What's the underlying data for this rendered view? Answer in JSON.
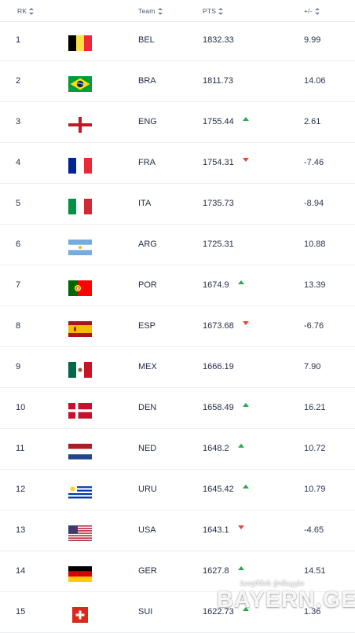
{
  "header": {
    "rk_label": "RK",
    "team_label": "Team",
    "pts_label": "PTS",
    "diff_label": "+/-"
  },
  "rows": [
    {
      "rank": "1",
      "flag": "belgium-flag-icon",
      "team": "BEL",
      "pts": "1832.33",
      "trend": "none",
      "diff": "9.99"
    },
    {
      "rank": "2",
      "flag": "brazil-flag-icon",
      "team": "BRA",
      "pts": "1811.73",
      "trend": "none",
      "diff": "14.06"
    },
    {
      "rank": "3",
      "flag": "england-flag-icon",
      "team": "ENG",
      "pts": "1755.44",
      "trend": "up",
      "diff": "2.61"
    },
    {
      "rank": "4",
      "flag": "france-flag-icon",
      "team": "FRA",
      "pts": "1754.31",
      "trend": "down",
      "diff": "-7.46"
    },
    {
      "rank": "5",
      "flag": "italy-flag-icon",
      "team": "ITA",
      "pts": "1735.73",
      "trend": "none",
      "diff": "-8.94"
    },
    {
      "rank": "6",
      "flag": "argentina-flag-icon",
      "team": "ARG",
      "pts": "1725.31",
      "trend": "none",
      "diff": "10.88"
    },
    {
      "rank": "7",
      "flag": "portugal-flag-icon",
      "team": "POR",
      "pts": "1674.9",
      "trend": "up",
      "diff": "13.39"
    },
    {
      "rank": "8",
      "flag": "spain-flag-icon",
      "team": "ESP",
      "pts": "1673.68",
      "trend": "down",
      "diff": "-6.76"
    },
    {
      "rank": "9",
      "flag": "mexico-flag-icon",
      "team": "MEX",
      "pts": "1666.19",
      "trend": "none",
      "diff": "7.90"
    },
    {
      "rank": "10",
      "flag": "denmark-flag-icon",
      "team": "DEN",
      "pts": "1658.49",
      "trend": "up",
      "diff": "16.21"
    },
    {
      "rank": "11",
      "flag": "netherlands-flag-icon",
      "team": "NED",
      "pts": "1648.2",
      "trend": "up",
      "diff": "10.72"
    },
    {
      "rank": "12",
      "flag": "uruguay-flag-icon",
      "team": "URU",
      "pts": "1645.42",
      "trend": "up",
      "diff": "10.79"
    },
    {
      "rank": "13",
      "flag": "usa-flag-icon",
      "team": "USA",
      "pts": "1643.1",
      "trend": "down",
      "diff": "-4.65"
    },
    {
      "rank": "14",
      "flag": "germany-flag-icon",
      "team": "GER",
      "pts": "1627.8",
      "trend": "up",
      "diff": "14.51"
    },
    {
      "rank": "15",
      "flag": "switzerland-flag-icon",
      "team": "SUI",
      "pts": "1622.73",
      "trend": "up",
      "diff": "1.36"
    }
  ],
  "colors": {
    "trend_up": "#2aa84a",
    "trend_down": "#e0493b",
    "text": "#1f2a44",
    "divider": "#eceef2"
  },
  "watermark": {
    "small_text": "ბაიერნის ქომაგები",
    "big_text": "BAYERN.GE"
  }
}
